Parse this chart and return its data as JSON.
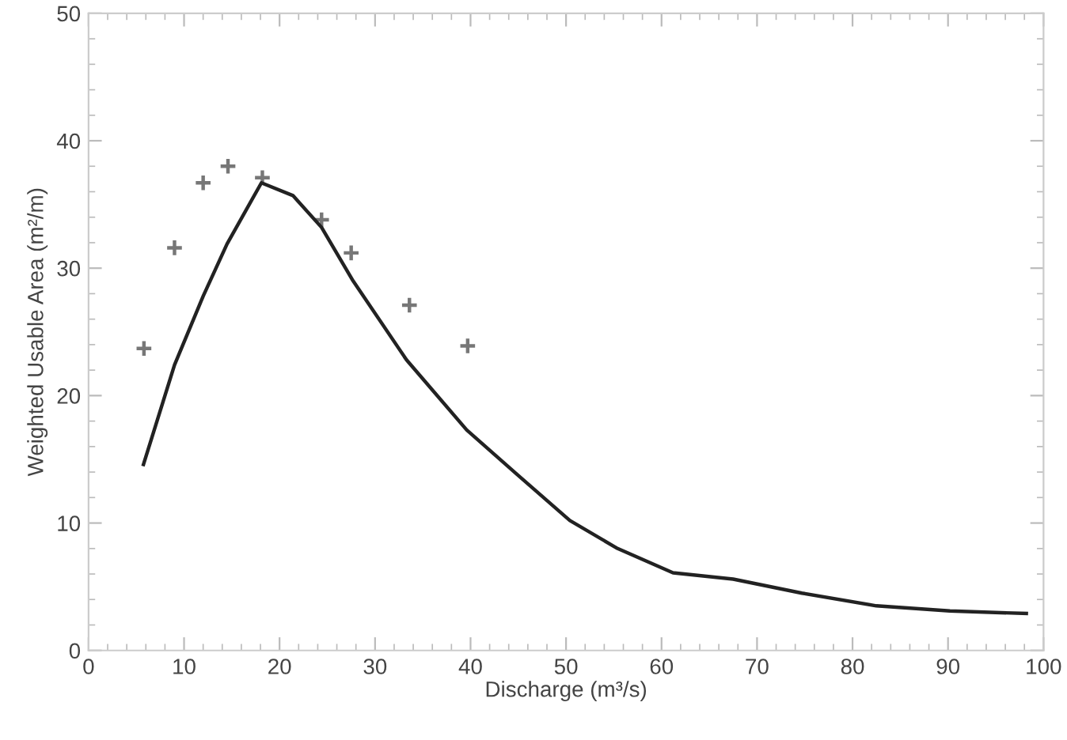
{
  "chart_data": {
    "type": "line",
    "xlabel": "Discharge (m³/s)",
    "ylabel": "Weighted Usable Area (m²/m)",
    "xlim": [
      0,
      100
    ],
    "xticks": [
      0,
      10,
      20,
      30,
      40,
      50,
      60,
      70,
      80,
      90,
      100
    ],
    "ylim": [
      0,
      50
    ],
    "yticks": [
      0,
      10,
      20,
      30,
      40,
      50
    ],
    "grid": false,
    "series": [
      {
        "color": "#222222",
        "line_style": "solid",
        "marker": "none",
        "x": [
          5.75,
          9.0,
          12.0,
          14.5,
          18.1,
          21.4,
          24.4,
          27.7,
          33.3,
          39.6,
          44.9,
          50.4,
          55.4,
          61.2,
          67.5,
          74.7,
          82.5,
          90.2,
          98.2
        ],
        "values": [
          14.6,
          22.4,
          27.8,
          31.9,
          36.7,
          35.7,
          33.2,
          29.0,
          22.8,
          17.3,
          13.8,
          10.2,
          8.0,
          6.1,
          5.6,
          4.5,
          3.5,
          3.1,
          2.9
        ]
      },
      {
        "type": "scatter",
        "color": "#777777",
        "marker": "cross",
        "x": [
          5.8,
          9.0,
          12.0,
          14.6,
          18.2,
          24.4,
          27.5,
          33.6,
          39.7
        ],
        "values": [
          23.7,
          31.6,
          36.7,
          38.0,
          37.1,
          33.8,
          31.2,
          27.1,
          23.9
        ]
      }
    ]
  }
}
